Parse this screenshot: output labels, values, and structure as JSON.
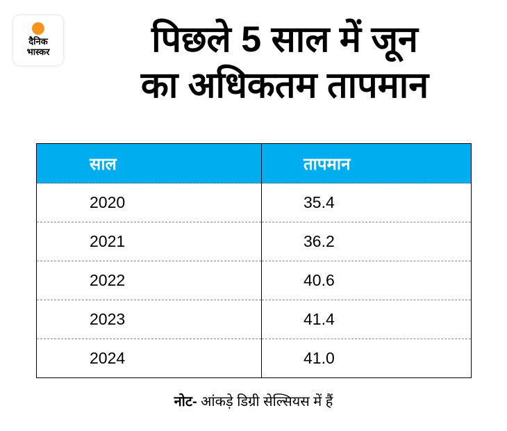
{
  "logo": {
    "line1": "दैनिक",
    "line2": "भास्कर",
    "sun_color": "#f7941d"
  },
  "title": {
    "line1": "पिछले 5 साल में जून",
    "line2": "का अधिकतम तापमान"
  },
  "header_color": "#00adef",
  "chart_data": {
    "type": "table",
    "title": "पिछले 5 साल में जून का अधिकतम तापमान",
    "columns": [
      "साल",
      "तापमान"
    ],
    "rows": [
      [
        "2020",
        "35.4"
      ],
      [
        "2021",
        "36.2"
      ],
      [
        "2022",
        "40.6"
      ],
      [
        "2023",
        "41.4"
      ],
      [
        "2024",
        "41.0"
      ]
    ]
  },
  "note": {
    "label": "नोट-",
    "text": " आंकड़े डिग्री सेल्सियस में हैं"
  }
}
